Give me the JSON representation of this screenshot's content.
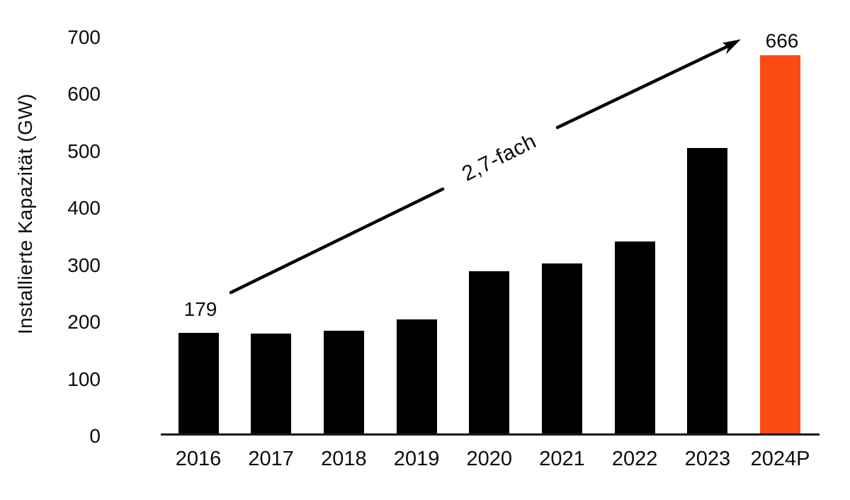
{
  "chart_data": {
    "type": "bar",
    "title": "",
    "xlabel": "",
    "ylabel": "Installierte Kapazität (GW)",
    "categories": [
      "2016",
      "2017",
      "2018",
      "2019",
      "2020",
      "2021",
      "2022",
      "2023",
      "2024P"
    ],
    "values": [
      179,
      178,
      183,
      202,
      287,
      301,
      339,
      503,
      666
    ],
    "yticks": [
      0,
      100,
      200,
      300,
      400,
      500,
      600,
      700
    ],
    "ylim": [
      0,
      700
    ],
    "grid": false,
    "legend": "none",
    "bar_color": "#000000",
    "highlight_bar_color": "#FB4A14",
    "highlight_index": 8,
    "annotations": {
      "first_bar_value_label": "179",
      "last_bar_value_label": "666",
      "growth_arrow_label": "2,7-fach"
    }
  }
}
